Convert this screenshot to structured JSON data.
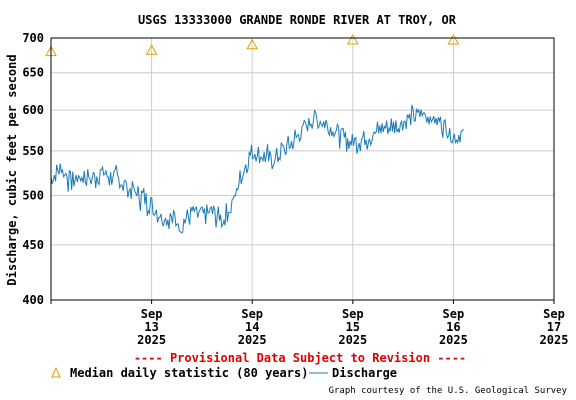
{
  "chart_data": {
    "type": "line",
    "title": "USGS 13333000 GRANDE RONDE RIVER AT TROY, OR",
    "ylabel": "Discharge, cubic feet per second",
    "xlabel": "",
    "y_scale": "log",
    "ylim": [
      400,
      700
    ],
    "yticks": [
      "700",
      "650",
      "600",
      "550",
      "500",
      "450",
      "400"
    ],
    "ytick_values": [
      700,
      650,
      600,
      550,
      500,
      450,
      400
    ],
    "xlim": [
      "2025-09-12 12:00",
      "2025-09-17 12:00"
    ],
    "xticks": [
      {
        "month": "Sep",
        "day": "13",
        "year": "2025"
      },
      {
        "month": "Sep",
        "day": "14",
        "year": "2025"
      },
      {
        "month": "Sep",
        "day": "15",
        "year": "2025"
      },
      {
        "month": "Sep",
        "day": "16",
        "year": "2025"
      },
      {
        "month": "Sep",
        "day": "17",
        "year": "2025"
      }
    ],
    "grid": true,
    "colors": {
      "discharge": "#1a7ab8",
      "median": "#e0a000",
      "notice": "#dd0000"
    },
    "series": [
      {
        "name": "Discharge",
        "x_unit": "days since 2025-09-12 12:00",
        "x": [
          0.0,
          0.1,
          0.2,
          0.3,
          0.4,
          0.5,
          0.6,
          0.7,
          0.8,
          0.9,
          1.0,
          1.1,
          1.2,
          1.3,
          1.4,
          1.5,
          1.6,
          1.7,
          1.8,
          1.9,
          2.0,
          2.1,
          2.2,
          2.3,
          2.4,
          2.5,
          2.6,
          2.7,
          2.8,
          2.9,
          3.0,
          3.1,
          3.2,
          3.3,
          3.4,
          3.5,
          3.6,
          3.7,
          3.8,
          3.9,
          4.0,
          4.1
        ],
        "values": [
          520,
          530,
          515,
          522,
          518,
          525,
          520,
          515,
          505,
          500,
          490,
          480,
          475,
          472,
          480,
          478,
          482,
          475,
          490,
          525,
          550,
          545,
          538,
          550,
          560,
          575,
          590,
          585,
          578,
          565,
          560,
          565,
          570,
          578,
          580,
          585,
          592,
          595,
          590,
          582,
          568,
          570
        ]
      },
      {
        "name": "Median daily statistic (80 years)",
        "marker": "triangle",
        "x_unit": "days since 2025-09-12 12:00",
        "x": [
          0.0,
          1.0,
          2.0,
          3.0,
          4.0
        ],
        "values": [
          680,
          682,
          690,
          697,
          697
        ]
      }
    ]
  },
  "notice": "---- Provisional Data Subject to Revision ----",
  "legend": {
    "median_label": "Median daily statistic (80 years)",
    "discharge_label": "Discharge"
  },
  "credit": "Graph courtesy of the U.S. Geological Survey"
}
